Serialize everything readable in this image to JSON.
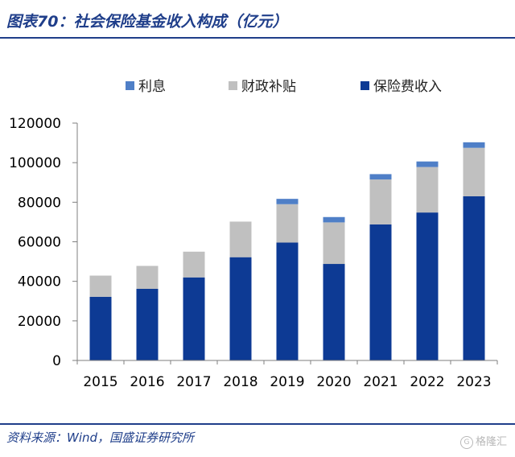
{
  "title": "图表70：社会保险基金收入构成（亿元）",
  "source": "资料来源：Wind，国盛证券研究所",
  "watermark": {
    "ring_glyph": "G",
    "text": "格隆汇"
  },
  "chart_data": {
    "type": "bar",
    "stacked": true,
    "categories": [
      "2015",
      "2016",
      "2017",
      "2018",
      "2019",
      "2020",
      "2021",
      "2022",
      "2023"
    ],
    "series": [
      {
        "name": "保险费收入",
        "color": "#0d3a94",
        "values": [
          32200,
          36200,
          42000,
          52200,
          59600,
          48800,
          68800,
          74800,
          83000
        ]
      },
      {
        "name": "财政补贴",
        "color": "#c0c0c0",
        "values": [
          10700,
          11600,
          13000,
          18000,
          19400,
          21000,
          22700,
          23000,
          24500
        ]
      },
      {
        "name": "利息",
        "color": "#4f7fc7",
        "values": [
          0,
          0,
          0,
          0,
          2700,
          2700,
          2700,
          2800,
          2800
        ]
      }
    ],
    "legend_order": [
      "利息",
      "财政补贴",
      "保险费收入"
    ],
    "yticks": [
      0,
      20000,
      40000,
      60000,
      80000,
      100000,
      120000
    ],
    "ylim": [
      0,
      120000
    ],
    "legend_position": "top",
    "grid": false
  }
}
